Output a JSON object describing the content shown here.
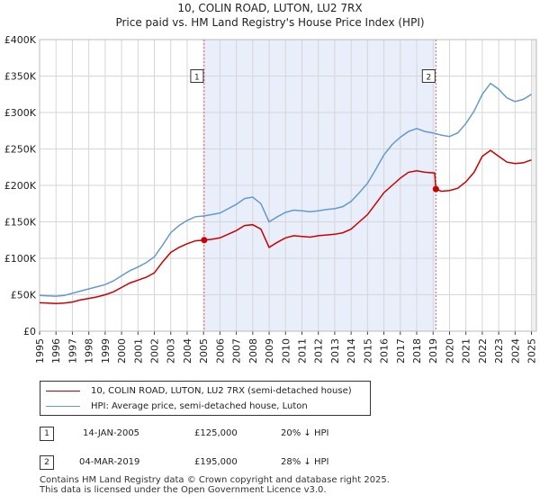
{
  "chart_data": {
    "type": "line",
    "title": "10, COLIN ROAD, LUTON, LU2 7RX",
    "subtitle": "Price paid vs. HM Land Registry's House Price Index (HPI)",
    "xlim": [
      1995,
      2025.3
    ],
    "ylim": [
      0,
      400000
    ],
    "y_ticks": [
      {
        "value": 0,
        "label": "£0"
      },
      {
        "value": 50000,
        "label": "£50K"
      },
      {
        "value": 100000,
        "label": "£100K"
      },
      {
        "value": 150000,
        "label": "£150K"
      },
      {
        "value": 200000,
        "label": "£200K"
      },
      {
        "value": 250000,
        "label": "£250K"
      },
      {
        "value": 300000,
        "label": "£300K"
      },
      {
        "value": 350000,
        "label": "£350K"
      },
      {
        "value": 400000,
        "label": "£400K"
      }
    ],
    "x_ticks": [
      "1995",
      "1996",
      "1997",
      "1998",
      "1999",
      "2000",
      "2001",
      "2002",
      "2003",
      "2004",
      "2005",
      "2006",
      "2007",
      "2008",
      "2009",
      "2010",
      "2011",
      "2012",
      "2013",
      "2014",
      "2015",
      "2016",
      "2017",
      "2018",
      "2019",
      "2020",
      "2021",
      "2022",
      "2023",
      "2024",
      "2025"
    ],
    "series": [
      {
        "name": "10, COLIN ROAD, LUTON, LU2 7RX (semi-detached house)",
        "color": "#cc0000",
        "points": [
          [
            1995,
            39000
          ],
          [
            1995.5,
            38500
          ],
          [
            1996,
            38000
          ],
          [
            1996.5,
            38500
          ],
          [
            1997,
            40000
          ],
          [
            1997.5,
            43000
          ],
          [
            1998,
            45000
          ],
          [
            1998.5,
            47000
          ],
          [
            1999,
            50000
          ],
          [
            1999.5,
            54000
          ],
          [
            2000,
            60000
          ],
          [
            2000.5,
            66000
          ],
          [
            2001,
            70000
          ],
          [
            2001.5,
            74000
          ],
          [
            2002,
            80000
          ],
          [
            2002.5,
            95000
          ],
          [
            2003,
            108000
          ],
          [
            2003.5,
            115000
          ],
          [
            2004,
            120000
          ],
          [
            2004.5,
            124000
          ],
          [
            2005.04,
            125000
          ],
          [
            2005.5,
            126000
          ],
          [
            2006,
            128000
          ],
          [
            2006.5,
            133000
          ],
          [
            2007,
            138000
          ],
          [
            2007.5,
            145000
          ],
          [
            2008,
            146000
          ],
          [
            2008.5,
            140000
          ],
          [
            2009,
            115000
          ],
          [
            2009.5,
            122000
          ],
          [
            2010,
            128000
          ],
          [
            2010.5,
            131000
          ],
          [
            2011,
            130000
          ],
          [
            2011.5,
            129000
          ],
          [
            2012,
            131000
          ],
          [
            2012.5,
            132000
          ],
          [
            2013,
            133000
          ],
          [
            2013.5,
            135000
          ],
          [
            2014,
            140000
          ],
          [
            2014.5,
            150000
          ],
          [
            2015,
            160000
          ],
          [
            2015.5,
            175000
          ],
          [
            2016,
            190000
          ],
          [
            2016.5,
            200000
          ],
          [
            2017,
            210000
          ],
          [
            2017.5,
            218000
          ],
          [
            2018,
            220000
          ],
          [
            2018.5,
            218000
          ],
          [
            2019.1,
            217000
          ],
          [
            2019.17,
            195000
          ],
          [
            2019.5,
            192000
          ],
          [
            2020,
            193000
          ],
          [
            2020.5,
            196000
          ],
          [
            2021,
            205000
          ],
          [
            2021.5,
            218000
          ],
          [
            2022,
            240000
          ],
          [
            2022.5,
            248000
          ],
          [
            2023,
            240000
          ],
          [
            2023.5,
            232000
          ],
          [
            2024,
            230000
          ],
          [
            2024.5,
            231000
          ],
          [
            2025,
            235000
          ]
        ]
      },
      {
        "name": "HPI: Average price, semi-detached house, Luton",
        "color": "#6699cc",
        "points": [
          [
            1995,
            49000
          ],
          [
            1995.5,
            48500
          ],
          [
            1996,
            48000
          ],
          [
            1996.5,
            49000
          ],
          [
            1997,
            52000
          ],
          [
            1997.5,
            55000
          ],
          [
            1998,
            58000
          ],
          [
            1998.5,
            61000
          ],
          [
            1999,
            64000
          ],
          [
            1999.5,
            69000
          ],
          [
            2000,
            76000
          ],
          [
            2000.5,
            83000
          ],
          [
            2001,
            88000
          ],
          [
            2001.5,
            94000
          ],
          [
            2002,
            102000
          ],
          [
            2002.5,
            118000
          ],
          [
            2003,
            135000
          ],
          [
            2003.5,
            145000
          ],
          [
            2004,
            152000
          ],
          [
            2004.5,
            157000
          ],
          [
            2005,
            158000
          ],
          [
            2005.5,
            160000
          ],
          [
            2006,
            162000
          ],
          [
            2006.5,
            168000
          ],
          [
            2007,
            174000
          ],
          [
            2007.5,
            182000
          ],
          [
            2008,
            184000
          ],
          [
            2008.5,
            175000
          ],
          [
            2009,
            150000
          ],
          [
            2009.5,
            157000
          ],
          [
            2010,
            163000
          ],
          [
            2010.5,
            166000
          ],
          [
            2011,
            165000
          ],
          [
            2011.5,
            164000
          ],
          [
            2012,
            165000
          ],
          [
            2012.5,
            167000
          ],
          [
            2013,
            168000
          ],
          [
            2013.5,
            171000
          ],
          [
            2014,
            178000
          ],
          [
            2014.5,
            190000
          ],
          [
            2015,
            203000
          ],
          [
            2015.5,
            222000
          ],
          [
            2016,
            242000
          ],
          [
            2016.5,
            256000
          ],
          [
            2017,
            266000
          ],
          [
            2017.5,
            274000
          ],
          [
            2018,
            278000
          ],
          [
            2018.5,
            274000
          ],
          [
            2019,
            272000
          ],
          [
            2019.5,
            269000
          ],
          [
            2020,
            267000
          ],
          [
            2020.5,
            272000
          ],
          [
            2021,
            285000
          ],
          [
            2021.5,
            302000
          ],
          [
            2022,
            325000
          ],
          [
            2022.5,
            340000
          ],
          [
            2023,
            332000
          ],
          [
            2023.5,
            320000
          ],
          [
            2024,
            315000
          ],
          [
            2024.5,
            318000
          ],
          [
            2025,
            325000
          ]
        ]
      }
    ],
    "markers": [
      {
        "id": "1",
        "date": "14-JAN-2005",
        "x": 2005.04,
        "price": 125000,
        "price_label": "£125,000",
        "hpi": "20% ↓ HPI",
        "box_value": 350000
      },
      {
        "id": "2",
        "date": "04-MAR-2019",
        "x": 2019.17,
        "price": 195000,
        "price_label": "£195,000",
        "hpi": "28% ↓ HPI",
        "box_value": 350000
      }
    ],
    "shaded_range": [
      2005.04,
      2019.17
    ],
    "legend_position": "below"
  },
  "footer": {
    "line1": "Contains HM Land Registry data © Crown copyright and database right 2025.",
    "line2": "This data is licensed under the Open Government Licence v3.0."
  },
  "colors": {
    "grid": "#d6d6d6",
    "shade": "#e8eefa",
    "axis": "#444444"
  }
}
